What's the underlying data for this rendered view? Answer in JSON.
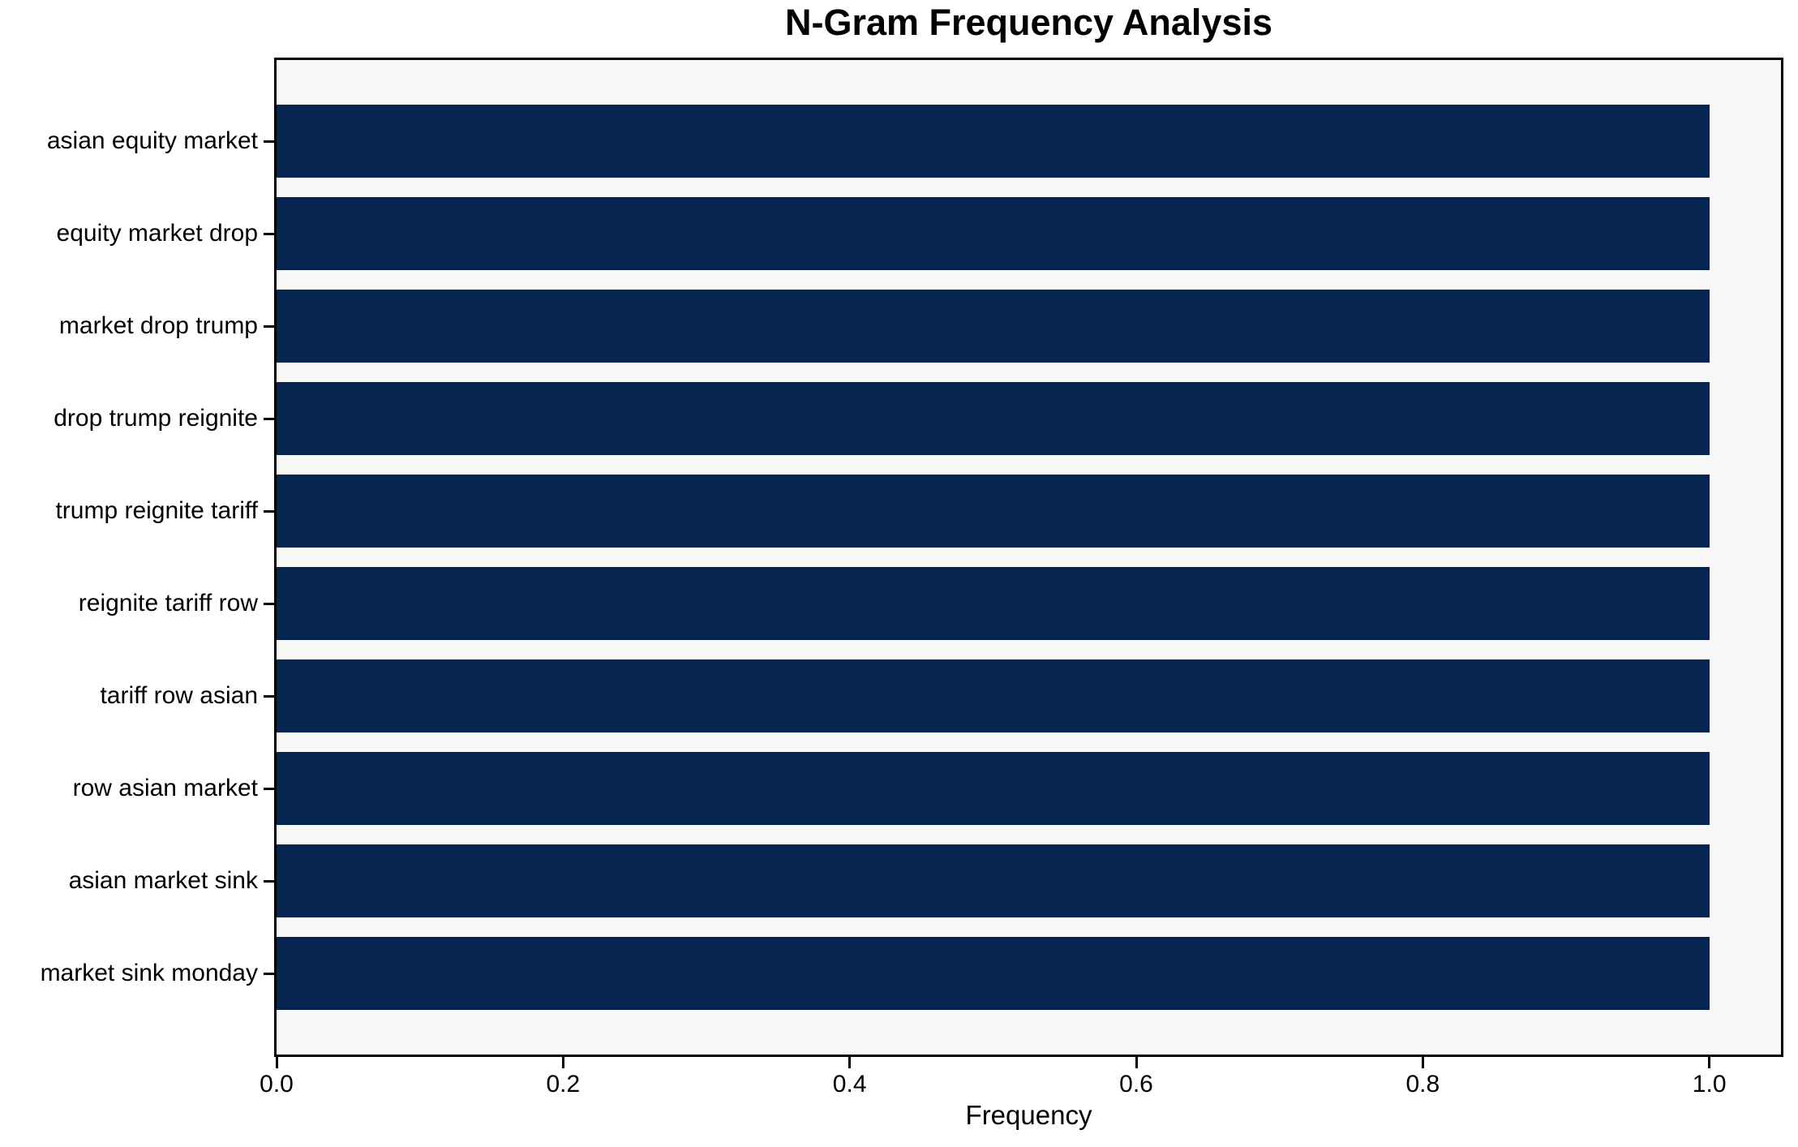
{
  "chart": {
    "title": "N-Gram Frequency Analysis",
    "xlabel": "Frequency"
  },
  "chart_data": {
    "type": "bar",
    "orientation": "horizontal",
    "title": "N-Gram Frequency Analysis",
    "xlabel": "Frequency",
    "ylabel": "",
    "categories": [
      "asian equity market",
      "equity market drop",
      "market drop trump",
      "drop trump reignite",
      "trump reignite tariff",
      "reignite tariff row",
      "tariff row asian",
      "row asian market",
      "asian market sink",
      "market sink monday"
    ],
    "values": [
      1.0,
      1.0,
      1.0,
      1.0,
      1.0,
      1.0,
      1.0,
      1.0,
      1.0,
      1.0
    ],
    "xlim": [
      0,
      1.05
    ],
    "xticks": [
      0.0,
      0.2,
      0.4,
      0.6,
      0.8,
      1.0
    ],
    "xtick_labels": [
      "0.0",
      "0.2",
      "0.4",
      "0.6",
      "0.8",
      "1.0"
    ],
    "grid": false,
    "legend": "none",
    "colors": {
      "bar": "#062550",
      "plot_background": "#f7f7f6",
      "figure_background": "#ffffff",
      "spine": "#000000",
      "text": "#000000"
    }
  }
}
